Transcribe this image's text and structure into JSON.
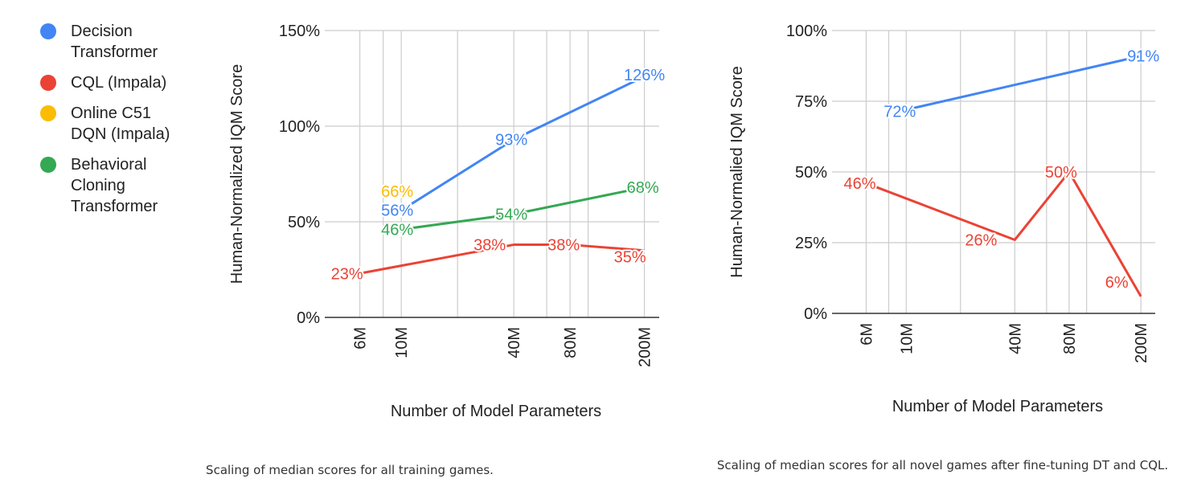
{
  "legend": {
    "items": [
      {
        "label": "Decision Transformer",
        "color": "#4285F4"
      },
      {
        "label": "CQL (Impala)",
        "color": "#EA4335"
      },
      {
        "label": "Online C51 DQN (Impala)",
        "color": "#FBBC04"
      },
      {
        "label": "Behavioral Cloning Transformer",
        "color": "#34A853"
      }
    ]
  },
  "captions": {
    "left": "Scaling of median scores for all training games.",
    "right": "Scaling of median scores for all novel games after fine-tuning DT and CQL."
  },
  "chart_data": [
    {
      "type": "line",
      "title": "",
      "xlabel": "Number of Model Parameters",
      "ylabel": "Human-Normalized IQM Score",
      "xscale": "log",
      "x_ticks": [
        "6M",
        "10M",
        "40M",
        "80M",
        "200M"
      ],
      "y_ticks": [
        "0%",
        "50%",
        "100%",
        "150%"
      ],
      "ylim": [
        0,
        150
      ],
      "grid": true,
      "series": [
        {
          "name": "Decision Transformer",
          "color": "#4285F4",
          "x": [
            10,
            40,
            200
          ],
          "values": [
            56,
            93,
            126
          ],
          "labels": [
            "56%",
            "93%",
            "126%"
          ]
        },
        {
          "name": "CQL (Impala)",
          "color": "#EA4335",
          "x": [
            6,
            40,
            80,
            200
          ],
          "values": [
            23,
            38,
            38,
            35
          ],
          "labels": [
            "23%",
            "38%",
            "38%",
            "35%"
          ]
        },
        {
          "name": "Online C51 DQN (Impala)",
          "color": "#FBBC04",
          "x": [
            10
          ],
          "values": [
            66
          ],
          "labels": [
            "66%"
          ]
        },
        {
          "name": "Behavioral Cloning Transformer",
          "color": "#34A853",
          "x": [
            10,
            40,
            200
          ],
          "values": [
            46,
            54,
            68
          ],
          "labels": [
            "46%",
            "54%",
            "68%"
          ]
        }
      ]
    },
    {
      "type": "line",
      "title": "",
      "xlabel": "Number of Model Parameters",
      "ylabel": "Human-Normalied IQM Score",
      "xscale": "log",
      "x_ticks": [
        "6M",
        "10M",
        "40M",
        "80M",
        "200M"
      ],
      "y_ticks": [
        "0%",
        "25%",
        "50%",
        "75%",
        "100%"
      ],
      "ylim": [
        0,
        100
      ],
      "grid": true,
      "series": [
        {
          "name": "Decision Transformer",
          "color": "#4285F4",
          "x": [
            10,
            200
          ],
          "values": [
            72,
            91
          ],
          "labels": [
            "72%",
            "91%"
          ]
        },
        {
          "name": "CQL (Impala)",
          "color": "#EA4335",
          "x": [
            6,
            40,
            80,
            200
          ],
          "values": [
            46,
            26,
            50,
            6
          ],
          "labels": [
            "46%",
            "26%",
            "50%",
            "6%"
          ]
        }
      ]
    }
  ]
}
